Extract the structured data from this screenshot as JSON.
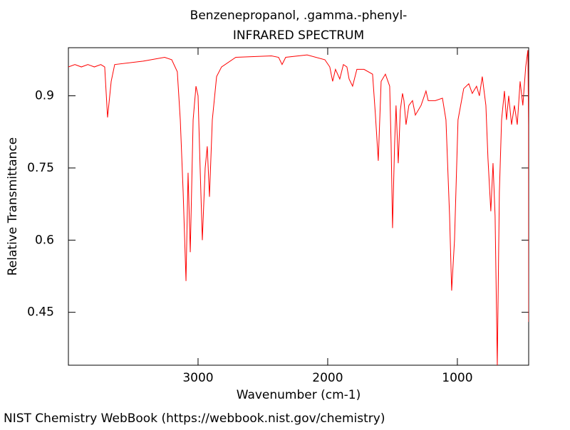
{
  "chart_data": {
    "type": "line",
    "title": "Benzenepropanol, .gamma.-phenyl-",
    "subtitle": "INFRARED SPECTRUM",
    "x_label": "Wavenumber (cm-1)",
    "y_label": "Relative Transmittance",
    "source": "NIST Chemistry WebBook (https://webbook.nist.gov/chemistry)",
    "color": "#ff0000",
    "xlim": [
      4000,
      450
    ],
    "ylim": [
      0.34,
      1.0
    ],
    "xticks": [
      3000,
      2000,
      1000
    ],
    "yticks": [
      0.9,
      0.75,
      0.6,
      0.45
    ],
    "x": [
      4000,
      3950,
      3900,
      3850,
      3800,
      3750,
      3720,
      3698,
      3670,
      3643,
      3423,
      3258,
      3203,
      3160,
      3137,
      3115,
      3093,
      3077,
      3060,
      3038,
      3016,
      3000,
      2984,
      2967,
      2945,
      2929,
      2912,
      2890,
      2857,
      2819,
      2709,
      2434,
      2379,
      2352,
      2324,
      2159,
      2022,
      1984,
      1962,
      1940,
      1907,
      1879,
      1852,
      1835,
      1808,
      1775,
      1720,
      1654,
      1632,
      1610,
      1588,
      1555,
      1522,
      1511,
      1500,
      1484,
      1473,
      1456,
      1440,
      1423,
      1412,
      1396,
      1374,
      1346,
      1324,
      1280,
      1242,
      1225,
      1170,
      1115,
      1088,
      1060,
      1044,
      1022,
      995,
      951,
      912,
      885,
      852,
      830,
      808,
      780,
      764,
      742,
      725,
      709,
      692,
      676,
      659,
      637,
      621,
      604,
      582,
      560,
      538,
      516,
      495,
      473,
      456,
      451,
      450
    ],
    "values": [
      0.96,
      0.965,
      0.96,
      0.965,
      0.96,
      0.965,
      0.96,
      0.855,
      0.93,
      0.965,
      0.972,
      0.98,
      0.975,
      0.95,
      0.85,
      0.7,
      0.515,
      0.74,
      0.575,
      0.85,
      0.92,
      0.9,
      0.75,
      0.6,
      0.75,
      0.795,
      0.69,
      0.85,
      0.94,
      0.96,
      0.98,
      0.983,
      0.98,
      0.965,
      0.98,
      0.985,
      0.975,
      0.96,
      0.93,
      0.955,
      0.935,
      0.965,
      0.96,
      0.935,
      0.92,
      0.955,
      0.955,
      0.945,
      0.86,
      0.765,
      0.93,
      0.945,
      0.92,
      0.8,
      0.625,
      0.8,
      0.88,
      0.76,
      0.87,
      0.905,
      0.89,
      0.84,
      0.88,
      0.89,
      0.86,
      0.88,
      0.91,
      0.89,
      0.89,
      0.895,
      0.85,
      0.65,
      0.495,
      0.6,
      0.85,
      0.915,
      0.925,
      0.905,
      0.92,
      0.9,
      0.94,
      0.88,
      0.77,
      0.66,
      0.76,
      0.65,
      0.34,
      0.7,
      0.85,
      0.91,
      0.85,
      0.9,
      0.84,
      0.88,
      0.84,
      0.93,
      0.88,
      0.96,
      0.995,
      0.84,
      0.43
    ]
  }
}
